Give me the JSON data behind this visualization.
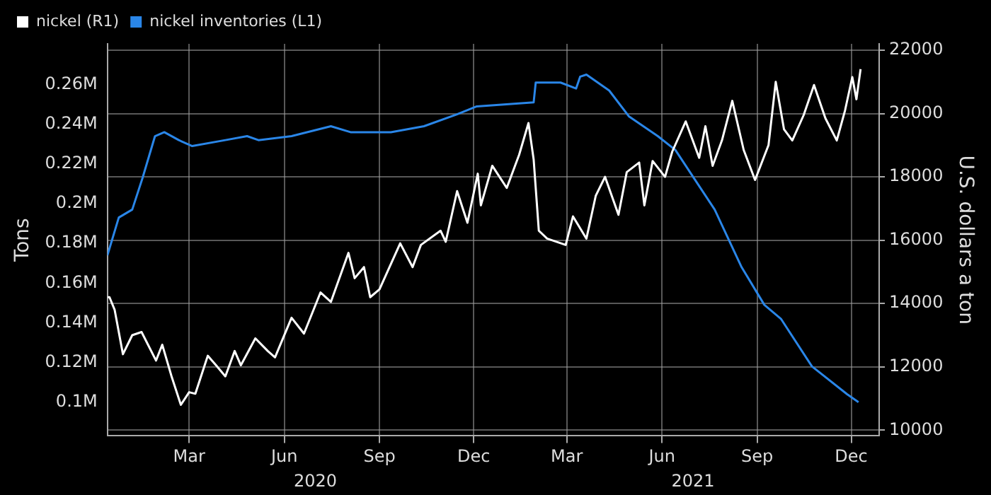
{
  "chart_data": {
    "type": "line",
    "xlabel": null,
    "ylabel": "Tons",
    "y2label": "U.S. dollars a ton",
    "legend": "top left",
    "grid": true,
    "marker": "none",
    "line_style": "solid",
    "xlim": [
      "2019-12-13",
      "2021-12-28"
    ],
    "xticks": [
      {
        "value": "2020-03-01",
        "label": "Mar"
      },
      {
        "value": "2020-06-01",
        "label": "Jun"
      },
      {
        "value": "2020-09-01",
        "label": "Sep"
      },
      {
        "value": "2020-12-01",
        "label": "Dec"
      },
      {
        "value": "2021-03-01",
        "label": "Mar"
      },
      {
        "value": "2021-06-01",
        "label": "Jun"
      },
      {
        "value": "2021-09-01",
        "label": "Sep"
      },
      {
        "value": "2021-12-01",
        "label": "Dec"
      }
    ],
    "x2lim": [
      "2019-12-13",
      "2021-12-28"
    ],
    "x2ticks": [
      {
        "value": "2020-07-01",
        "label": "2020"
      },
      {
        "value": "2021-07-01",
        "label": "2021"
      }
    ],
    "ylim": [
      83000,
      280500
    ],
    "yticks": [
      {
        "value": 100000,
        "label": "0.1M"
      },
      {
        "value": 120000,
        "label": "0.12M"
      },
      {
        "value": 140000,
        "label": "0.14M"
      },
      {
        "value": 160000,
        "label": "0.16M"
      },
      {
        "value": 180000,
        "label": "0.18M"
      },
      {
        "value": 200000,
        "label": "0.2M"
      },
      {
        "value": 220000,
        "label": "0.22M"
      },
      {
        "value": 240000,
        "label": "0.24M"
      },
      {
        "value": 260000,
        "label": "0.26M"
      }
    ],
    "y2lim": [
      9820,
      22200
    ],
    "y2ticks": [
      10000,
      12000,
      14000,
      16000,
      18000,
      20000,
      22000
    ],
    "series": [
      {
        "name": "nickel (R1)",
        "color": "#ffffff",
        "axis": "y2",
        "x": [
          "2019-12-13",
          "2019-12-15",
          "2019-12-20",
          "2019-12-28",
          "2020-01-06",
          "2020-01-15",
          "2020-01-29",
          "2020-02-04",
          "2020-02-13",
          "2020-02-22",
          "2020-03-01",
          "2020-03-07",
          "2020-03-19",
          "2020-03-27",
          "2020-04-05",
          "2020-04-14",
          "2020-04-20",
          "2020-05-04",
          "2020-05-16",
          "2020-05-23",
          "2020-06-08",
          "2020-06-20",
          "2020-07-06",
          "2020-07-16",
          "2020-08-02",
          "2020-08-08",
          "2020-08-17",
          "2020-08-23",
          "2020-09-01",
          "2020-09-21",
          "2020-10-03",
          "2020-10-11",
          "2020-10-30",
          "2020-11-04",
          "2020-11-15",
          "2020-11-25",
          "2020-12-05",
          "2020-12-08",
          "2020-12-19",
          "2021-01-02",
          "2021-01-14",
          "2021-01-23",
          "2021-01-28",
          "2021-02-02",
          "2021-02-10",
          "2021-02-28",
          "2021-03-07",
          "2021-03-20",
          "2021-03-29",
          "2021-04-07",
          "2021-04-20",
          "2021-04-28",
          "2021-05-10",
          "2021-05-15",
          "2021-05-23",
          "2021-06-04",
          "2021-06-11",
          "2021-06-24",
          "2021-07-07",
          "2021-07-13",
          "2021-07-20",
          "2021-07-29",
          "2021-08-08",
          "2021-08-19",
          "2021-08-30",
          "2021-09-12",
          "2021-09-19",
          "2021-09-27",
          "2021-10-05",
          "2021-10-16",
          "2021-10-26",
          "2021-11-06",
          "2021-11-17",
          "2021-11-25",
          "2021-12-02",
          "2021-12-06",
          "2021-12-10"
        ],
        "values": [
          14200,
          14200,
          13800,
          12400,
          13000,
          13100,
          12200,
          12700,
          11700,
          10800,
          11200,
          11150,
          12350,
          12050,
          11700,
          12500,
          12050,
          12900,
          12500,
          12300,
          13550,
          13050,
          14350,
          14050,
          15600,
          14800,
          15150,
          14200,
          14450,
          15900,
          15150,
          15850,
          16300,
          15950,
          17550,
          16550,
          18100,
          17100,
          18350,
          17650,
          18700,
          19700,
          18550,
          16300,
          16050,
          15850,
          16750,
          16050,
          17400,
          18000,
          16800,
          18150,
          18450,
          17100,
          18500,
          18000,
          18800,
          19750,
          18600,
          19600,
          18350,
          19150,
          20400,
          18850,
          17900,
          19000,
          21000,
          19500,
          19150,
          19950,
          20900,
          19850,
          19150,
          20100,
          21150,
          20450,
          21400
        ]
      },
      {
        "name": "nickel inventories (L1)",
        "color": "#2a86e8",
        "x": [
          "2019-12-13",
          "2019-12-24",
          "2020-01-06",
          "2020-01-16",
          "2020-01-28",
          "2020-02-06",
          "2020-02-20",
          "2020-03-04",
          "2020-04-05",
          "2020-04-26",
          "2020-05-07",
          "2020-06-08",
          "2020-07-16",
          "2020-08-04",
          "2020-09-12",
          "2020-10-14",
          "2020-11-15",
          "2020-12-04",
          "2021-01-28",
          "2021-01-30",
          "2021-02-23",
          "2021-03-10",
          "2021-03-14",
          "2021-03-20",
          "2021-04-11",
          "2021-04-30",
          "2021-05-28",
          "2021-06-14",
          "2021-07-22",
          "2021-08-17",
          "2021-09-08",
          "2021-09-24",
          "2021-10-24",
          "2021-11-27",
          "2021-12-08"
        ],
        "values": [
          174000,
          193000,
          197000,
          213000,
          234000,
          236000,
          232000,
          229000,
          232000,
          234000,
          232000,
          234000,
          239000,
          236000,
          236000,
          239000,
          245000,
          249000,
          251000,
          261000,
          261000,
          258000,
          264000,
          265000,
          257000,
          244000,
          234000,
          227000,
          197000,
          168000,
          149000,
          142000,
          118000,
          104000,
          100000
        ]
      }
    ]
  }
}
